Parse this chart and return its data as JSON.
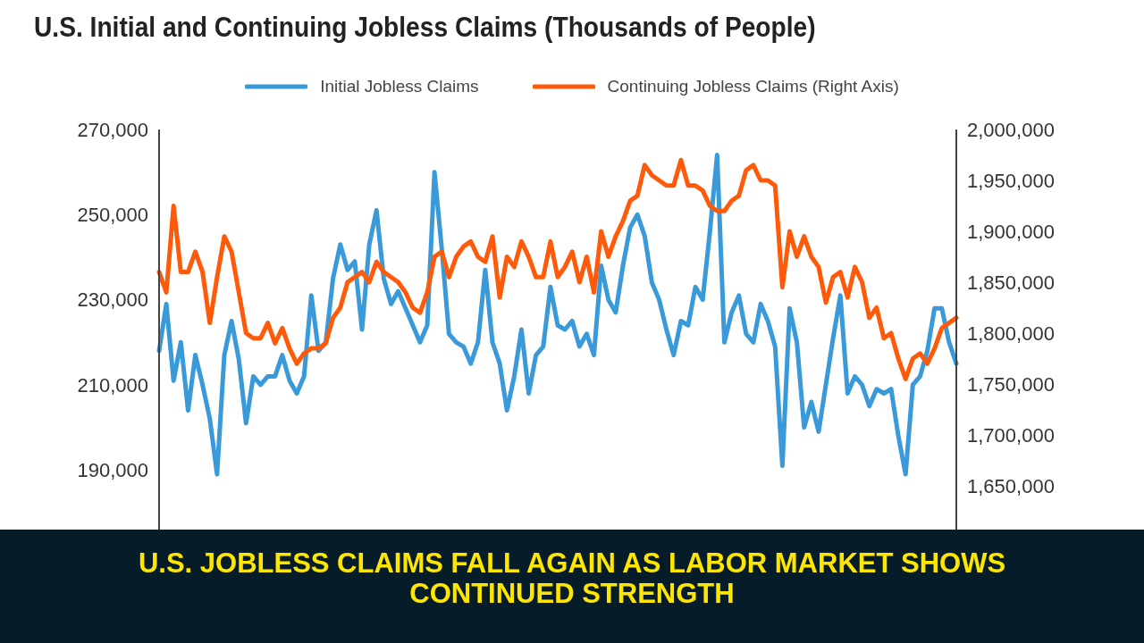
{
  "chart_data": {
    "type": "line",
    "title": "U.S. Initial and Continuing Jobless Claims (Thousands of People)",
    "annotations": [
      "U.S. JOBLESS CLAIMS FALL AGAIN AS LABOR MARKET SHOWS CONTINUED STRENGTH"
    ],
    "categories": [
      null,
      null,
      null,
      null,
      null,
      null,
      null,
      null,
      null,
      null,
      null,
      null,
      null,
      null,
      null,
      null,
      null,
      null,
      null,
      null,
      null,
      null,
      null,
      null,
      null,
      null,
      null,
      null,
      null,
      null,
      null,
      null,
      null,
      null,
      null,
      null,
      null,
      null,
      null,
      null,
      null,
      null,
      null,
      null,
      null,
      null,
      null,
      null,
      null,
      null,
      null,
      null,
      null,
      null,
      null,
      null,
      null,
      null,
      null,
      null,
      null,
      null,
      null,
      null,
      null,
      null,
      null,
      null,
      null,
      null,
      null,
      null,
      null,
      null,
      null,
      null,
      null,
      null,
      null,
      null,
      null,
      null,
      null,
      null,
      null,
      null,
      null,
      null,
      null,
      null,
      null,
      null,
      null,
      null,
      null,
      null,
      null,
      null,
      null,
      null,
      null,
      null,
      null,
      null,
      null,
      null,
      null,
      null,
      null,
      null,
      null
    ],
    "series": [
      {
        "name": "Initial Jobless Claims",
        "color": "#3a9ad9",
        "values": [
          218000,
          229000,
          211000,
          220000,
          204000,
          217000,
          210000,
          202000,
          189000,
          217000,
          225000,
          216000,
          201000,
          212000,
          210000,
          212000,
          212000,
          217000,
          211000,
          208000,
          212000,
          231000,
          218000,
          220000,
          235000,
          243000,
          237000,
          239000,
          223000,
          243000,
          251000,
          235000,
          229000,
          232000,
          228000,
          224000,
          220000,
          224000,
          260000,
          242000,
          222000,
          220000,
          219000,
          215000,
          220000,
          237000,
          220000,
          215000,
          204000,
          212000,
          223000,
          208000,
          217000,
          219000,
          233000,
          224000,
          223000,
          225000,
          219000,
          222000,
          217000,
          238000,
          230000,
          227000,
          238000,
          247000,
          250000,
          245000,
          234000,
          230000,
          223000,
          217000,
          225000,
          224000,
          233000,
          230000,
          246000,
          264000,
          220000,
          227000,
          231000,
          222000,
          220000,
          229000,
          225000,
          219000,
          191000,
          228000,
          220000,
          200000,
          206000,
          199000,
          210000,
          221000,
          231000,
          208000,
          212000,
          210000,
          205000,
          209000,
          208000,
          209000,
          198000,
          189000,
          210000,
          212000,
          218000,
          228000,
          228000,
          220000,
          215000
        ]
      },
      {
        "name": "Continuing Jobless Claims (Right Axis)",
        "color": "#ff5a0a",
        "axis": "y2",
        "values": [
          1860000,
          1840000,
          1925000,
          1860000,
          1860000,
          1880000,
          1860000,
          1810000,
          1855000,
          1895000,
          1880000,
          1840000,
          1800000,
          1795000,
          1795000,
          1810000,
          1790000,
          1805000,
          1785000,
          1770000,
          1780000,
          1785000,
          1785000,
          1790000,
          1815000,
          1825000,
          1850000,
          1855000,
          1860000,
          1850000,
          1870000,
          1860000,
          1855000,
          1850000,
          1840000,
          1825000,
          1820000,
          1840000,
          1875000,
          1880000,
          1855000,
          1875000,
          1885000,
          1890000,
          1875000,
          1870000,
          1895000,
          1835000,
          1875000,
          1865000,
          1890000,
          1875000,
          1855000,
          1855000,
          1890000,
          1855000,
          1865000,
          1880000,
          1850000,
          1875000,
          1840000,
          1900000,
          1875000,
          1895000,
          1910000,
          1930000,
          1935000,
          1965000,
          1955000,
          1950000,
          1945000,
          1945000,
          1970000,
          1945000,
          1945000,
          1940000,
          1925000,
          1920000,
          1920000,
          1930000,
          1935000,
          1960000,
          1965000,
          1950000,
          1950000,
          1945000,
          1845000,
          1900000,
          1875000,
          1895000,
          1875000,
          1865000,
          1830000,
          1855000,
          1860000,
          1835000,
          1865000,
          1850000,
          1815000,
          1825000,
          1795000,
          1800000,
          1775000,
          1755000,
          1775000,
          1780000,
          1770000,
          1785000,
          1805000,
          1810000,
          1815000
        ]
      }
    ],
    "ylim": [
      176000,
      270000
    ],
    "yticks": [
      {
        "value": 190000,
        "label": "190,000"
      },
      {
        "value": 210000,
        "label": "210,000"
      },
      {
        "value": 230000,
        "label": "230,000"
      },
      {
        "value": 250000,
        "label": "250,000"
      },
      {
        "value": 270000,
        "label": "270,000"
      }
    ],
    "y2lim": [
      1607000,
      2000000
    ],
    "y2ticks": [
      {
        "value": 1650000,
        "label": "1,650,000"
      },
      {
        "value": 1700000,
        "label": "1,700,000"
      },
      {
        "value": 1750000,
        "label": "1,750,000"
      },
      {
        "value": 1800000,
        "label": "1,800,000"
      },
      {
        "value": 1850000,
        "label": "1,850,000"
      },
      {
        "value": 1900000,
        "label": "1,900,000"
      },
      {
        "value": 1950000,
        "label": "1,950,000"
      },
      {
        "value": 2000000,
        "label": "2,000,000"
      }
    ],
    "legend": "top",
    "marker": "none",
    "line_style": "solid"
  }
}
